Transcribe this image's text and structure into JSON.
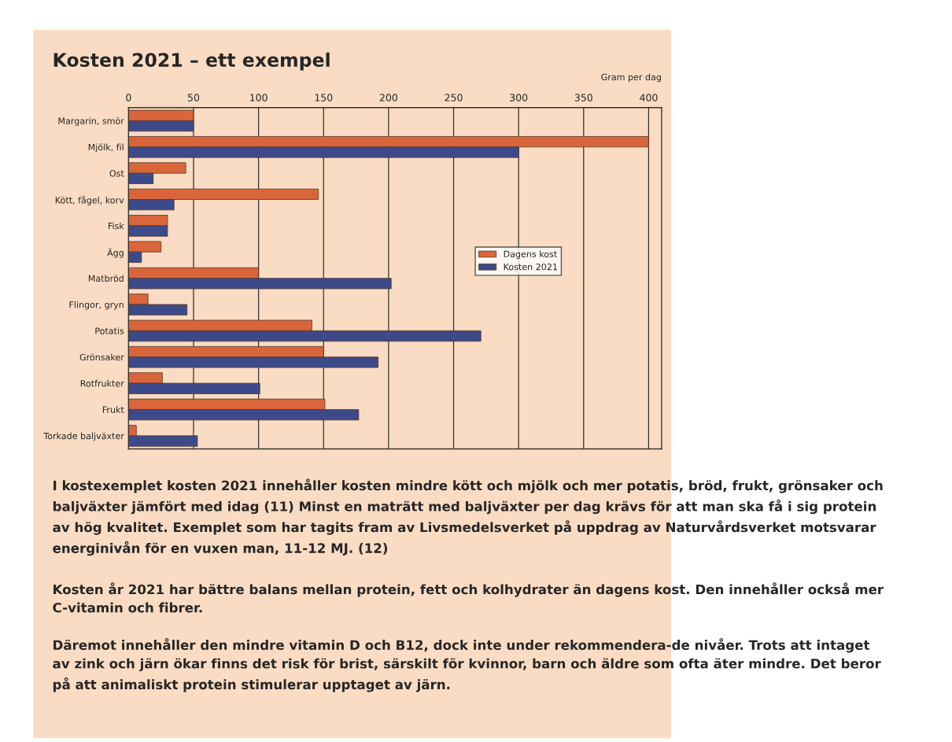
{
  "chart_data": {
    "type": "bar",
    "orientation": "horizontal",
    "title": "Kosten 2021 – ett exempel",
    "xlabel": "Gram per dag",
    "categories": [
      "Margarin, smör",
      "Mjölk, fil",
      "Ost",
      "Kött, fågel, korv",
      "Fisk",
      "Ägg",
      "Matbröd",
      "Flingor, gryn",
      "Potatis",
      "Grönsaker",
      "Rotfrukter",
      "Frukt",
      "Torkade baljväxter"
    ],
    "series": [
      {
        "name": "Dagens kost",
        "color": "#d9663a",
        "values": [
          50,
          400,
          44,
          146,
          30,
          25,
          100,
          15,
          141,
          150,
          26,
          151,
          6
        ]
      },
      {
        "name": "Kosten 2021",
        "color": "#3d4a8a",
        "values": [
          50,
          300,
          19,
          35,
          30,
          10,
          202,
          45,
          271,
          192,
          101,
          177,
          53
        ]
      }
    ],
    "xlim": [
      0,
      410
    ],
    "xticks": [
      0,
      50,
      100,
      150,
      200,
      250,
      300,
      350,
      400
    ],
    "grid": "x",
    "legend": "right",
    "annotations": [
      "I kostexemplet kosten 2021 innehåller kosten mindre kött och mjölk och mer potatis, bröd, frukt, grönsaker och baljväxter jämfört med idag (11) Minst en maträtt med baljväxter per dag krävs för att man ska få i sig protein av hög kvalitet. Exemplet som har tagits fram av Livsmedelsverket på uppdrag av Naturvårdsverket motsvarar energinivån för en vuxen man, 11-12 MJ. (12)",
      "Kosten år 2021 har bättre balans mellan protein, fett och kolhydrater än dagens kost. Den innehåller också mer C-vitamin och fibrer.",
      "Däremot innehåller den mindre vitamin D och B12, dock inte under rekommendera-de nivåer. Trots att intaget av zink och järn ökar finns det risk för brist, särskilt för kvinnor, barn och äldre som ofta äter mindre. Det beror på att animaliskt protein stimulerar upptaget av järn."
    ]
  }
}
